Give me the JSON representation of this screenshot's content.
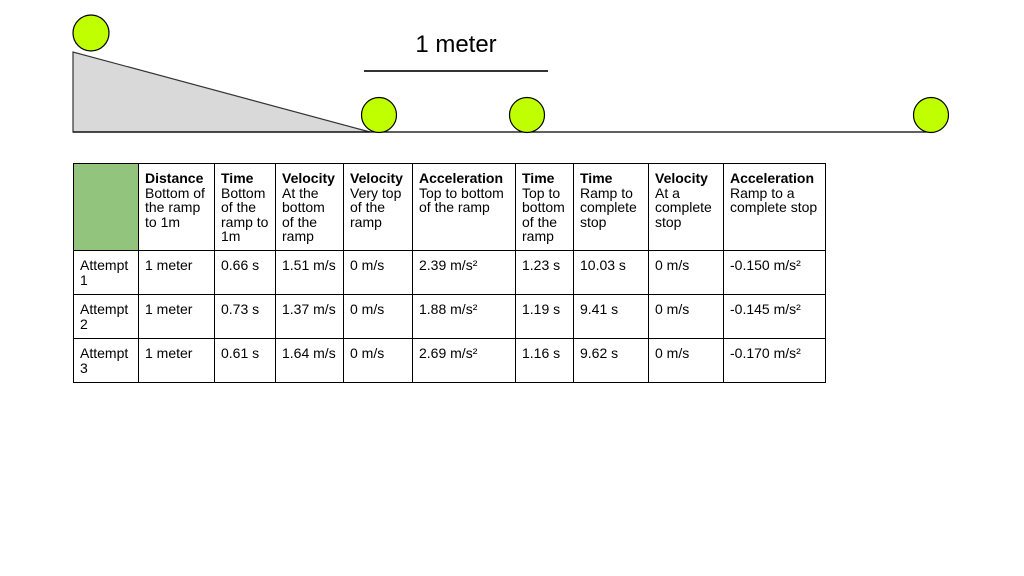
{
  "colors": {
    "ball_fill": "#bfff00",
    "ball_stroke": "#000000",
    "ramp_fill": "#d9d9d9",
    "header_accent": "#93c47d"
  },
  "diagram": {
    "measure_label": "1 meter",
    "balls": [
      {
        "name": "ball-top-of-ramp"
      },
      {
        "name": "ball-bottom-of-ramp"
      },
      {
        "name": "ball-one-meter"
      },
      {
        "name": "ball-complete-stop"
      }
    ]
  },
  "table": {
    "columns": [
      {
        "head": "",
        "sub": ""
      },
      {
        "head": "Distance",
        "sub": "Bottom of the ramp to 1m"
      },
      {
        "head": "Time",
        "sub": "Bottom of the ramp to 1m"
      },
      {
        "head": "Velocity",
        "sub": "At the bottom of the ramp"
      },
      {
        "head": "Velocity",
        "sub": "Very top of the ramp"
      },
      {
        "head": "Acceleration",
        "sub": "Top to bottom of the ramp"
      },
      {
        "head": "Time",
        "sub": "Top to bottom of the ramp"
      },
      {
        "head": "Time",
        "sub": "Ramp to complete stop"
      },
      {
        "head": "Velocity",
        "sub": "At a complete stop"
      },
      {
        "head": "Acceleration",
        "sub": "Ramp to a complete stop"
      }
    ],
    "rows": [
      [
        "Attempt 1",
        "1 meter",
        "0.66 s",
        "1.51 m/s",
        "0 m/s",
        "2.39 m/s²",
        "1.23 s",
        "10.03 s",
        "0 m/s",
        "-0.150 m/s²"
      ],
      [
        "Attempt 2",
        "1 meter",
        "0.73 s",
        "1.37 m/s",
        "0 m/s",
        "1.88 m/s²",
        "1.19 s",
        "9.41 s",
        "0 m/s",
        "-0.145 m/s²"
      ],
      [
        "Attempt 3",
        "1 meter",
        "0.61 s",
        "1.64 m/s",
        "0 m/s",
        "2.69 m/s²",
        "1.16 s",
        "9.62 s",
        "0 m/s",
        "-0.170 m/s²"
      ]
    ]
  }
}
